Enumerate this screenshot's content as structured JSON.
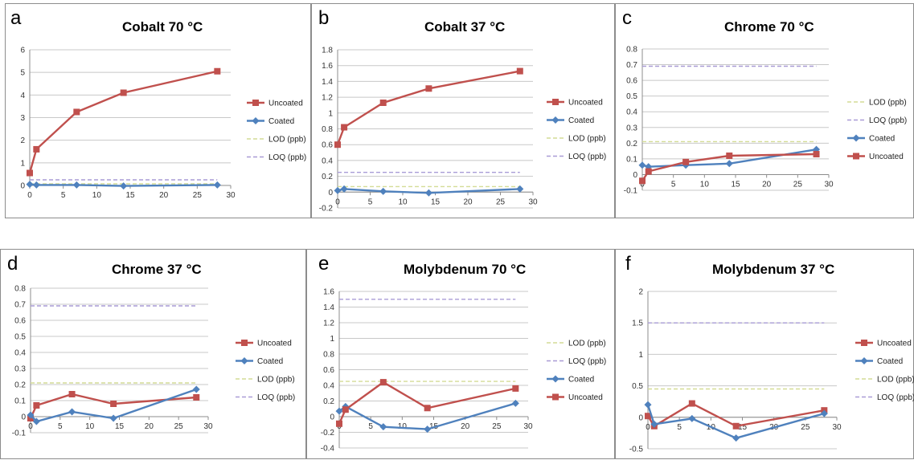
{
  "colors": {
    "uncoated": "#c0504d",
    "coated": "#4f81bd",
    "lod": "#d4dc96",
    "loq": "#a99cd6",
    "grid": "#c8c8c8",
    "axis": "#8c8c8c"
  },
  "chart_data": [
    {
      "letter": "a",
      "title": "Cobalt 70 °C",
      "type": "line",
      "xlim": [
        0,
        30
      ],
      "xticks": [
        0,
        5,
        10,
        15,
        20,
        25,
        30
      ],
      "ylim": [
        0,
        6
      ],
      "yticks": [
        0,
        1,
        2,
        3,
        4,
        5,
        6
      ],
      "series": [
        {
          "name": "Uncoated",
          "kind": "uncoated",
          "x": [
            0,
            1,
            7,
            14,
            28
          ],
          "y": [
            0.55,
            1.6,
            3.25,
            4.1,
            5.05
          ]
        },
        {
          "name": "Coated",
          "kind": "coated",
          "x": [
            0,
            1,
            7,
            14,
            28
          ],
          "y": [
            0.05,
            0.02,
            0.02,
            -0.02,
            0.02
          ]
        },
        {
          "name": "LOD (ppb)",
          "kind": "lod",
          "x": [
            0,
            28
          ],
          "y": [
            0.07,
            0.07
          ]
        },
        {
          "name": "LOQ (ppb)",
          "kind": "loq",
          "x": [
            0,
            28
          ],
          "y": [
            0.25,
            0.25
          ]
        }
      ]
    },
    {
      "letter": "b",
      "title": "Cobalt 37 °C",
      "type": "line",
      "xlim": [
        0,
        30
      ],
      "xticks": [
        0,
        5,
        10,
        15,
        20,
        25,
        30
      ],
      "ylim": [
        -0.2,
        1.8
      ],
      "yticks": [
        -0.2,
        0,
        0.2,
        0.4,
        0.6,
        0.8,
        1,
        1.2,
        1.4,
        1.6,
        1.8
      ],
      "series": [
        {
          "name": "Uncoated",
          "kind": "uncoated",
          "x": [
            0,
            1,
            7,
            14,
            28
          ],
          "y": [
            0.6,
            0.82,
            1.13,
            1.31,
            1.53
          ]
        },
        {
          "name": "Coated",
          "kind": "coated",
          "x": [
            0,
            1,
            7,
            14,
            28
          ],
          "y": [
            0.02,
            0.04,
            0.01,
            -0.01,
            0.04
          ]
        },
        {
          "name": "LOD (ppb)",
          "kind": "lod",
          "x": [
            0,
            28
          ],
          "y": [
            0.07,
            0.07
          ]
        },
        {
          "name": "LOQ (ppb)",
          "kind": "loq",
          "x": [
            0,
            28
          ],
          "y": [
            0.25,
            0.25
          ]
        }
      ]
    },
    {
      "letter": "c",
      "title": "Chrome 70 °C",
      "type": "line",
      "xlim": [
        0,
        30
      ],
      "xticks": [
        0,
        5,
        10,
        15,
        20,
        25,
        30
      ],
      "ylim": [
        -0.1,
        0.8
      ],
      "yticks": [
        -0.1,
        0,
        0.1,
        0.2,
        0.3,
        0.4,
        0.5,
        0.6,
        0.7,
        0.8
      ],
      "series": [
        {
          "name": "LOD (ppb)",
          "kind": "lod",
          "x": [
            0,
            28
          ],
          "y": [
            0.21,
            0.21
          ]
        },
        {
          "name": "LOQ (ppb)",
          "kind": "loq",
          "x": [
            0,
            28
          ],
          "y": [
            0.69,
            0.69
          ]
        },
        {
          "name": "Coated",
          "kind": "coated",
          "x": [
            0,
            1,
            7,
            14,
            28
          ],
          "y": [
            0.06,
            0.05,
            0.06,
            0.07,
            0.16
          ]
        },
        {
          "name": "Uncoated",
          "kind": "uncoated",
          "x": [
            0,
            1,
            7,
            14,
            28
          ],
          "y": [
            -0.04,
            0.02,
            0.08,
            0.12,
            0.13
          ]
        }
      ]
    },
    {
      "letter": "d",
      "title": "Chrome 37 °C",
      "type": "line",
      "xlim": [
        0,
        30
      ],
      "xticks": [
        0,
        5,
        10,
        15,
        20,
        25,
        30
      ],
      "ylim": [
        -0.1,
        0.8
      ],
      "yticks": [
        -0.1,
        0,
        0.1,
        0.2,
        0.3,
        0.4,
        0.5,
        0.6,
        0.7,
        0.8
      ],
      "series": [
        {
          "name": "Uncoated",
          "kind": "uncoated",
          "x": [
            0,
            1,
            7,
            14,
            28
          ],
          "y": [
            -0.01,
            0.07,
            0.14,
            0.08,
            0.12
          ]
        },
        {
          "name": "Coated",
          "kind": "coated",
          "x": [
            0,
            1,
            7,
            14,
            28
          ],
          "y": [
            0.01,
            -0.03,
            0.03,
            -0.01,
            0.17
          ]
        },
        {
          "name": "LOD (ppb)",
          "kind": "lod",
          "x": [
            0,
            28
          ],
          "y": [
            0.21,
            0.21
          ]
        },
        {
          "name": "LOQ (ppb)",
          "kind": "loq",
          "x": [
            0,
            28
          ],
          "y": [
            0.69,
            0.69
          ]
        }
      ]
    },
    {
      "letter": "e",
      "title": "Molybdenum 70 °C",
      "type": "line",
      "xlim": [
        0,
        30
      ],
      "xticks": [
        0,
        5,
        10,
        15,
        20,
        25,
        30
      ],
      "ylim": [
        -0.4,
        1.6
      ],
      "yticks": [
        -0.4,
        -0.2,
        0,
        0.2,
        0.4,
        0.6,
        0.8,
        1,
        1.2,
        1.4,
        1.6
      ],
      "series": [
        {
          "name": "LOD (ppb)",
          "kind": "lod",
          "x": [
            0,
            28
          ],
          "y": [
            0.45,
            0.45
          ]
        },
        {
          "name": "LOQ (ppb)",
          "kind": "loq",
          "x": [
            0,
            28
          ],
          "y": [
            1.5,
            1.5
          ]
        },
        {
          "name": "Coated",
          "kind": "coated",
          "x": [
            0,
            1,
            7,
            14,
            28
          ],
          "y": [
            0.07,
            0.13,
            -0.13,
            -0.16,
            0.17
          ]
        },
        {
          "name": "Uncoated",
          "kind": "uncoated",
          "x": [
            0,
            1,
            7,
            14,
            28
          ],
          "y": [
            -0.09,
            0.09,
            0.44,
            0.11,
            0.36
          ]
        }
      ]
    },
    {
      "letter": "f",
      "title": "Molybdenum 37 °C",
      "type": "line",
      "xlim": [
        0,
        30
      ],
      "xticks": [
        0,
        5,
        10,
        15,
        20,
        25,
        30
      ],
      "ylim": [
        -0.5,
        2
      ],
      "yticks": [
        -0.5,
        0,
        0.5,
        1,
        1.5,
        2
      ],
      "series": [
        {
          "name": "Uncoated",
          "kind": "uncoated",
          "x": [
            0,
            1,
            7,
            14,
            28
          ],
          "y": [
            0.02,
            -0.14,
            0.22,
            -0.14,
            0.11
          ]
        },
        {
          "name": "Coated",
          "kind": "coated",
          "x": [
            0,
            1,
            7,
            14,
            28
          ],
          "y": [
            0.2,
            -0.11,
            -0.02,
            -0.33,
            0.06
          ]
        },
        {
          "name": "LOD (ppb)",
          "kind": "lod",
          "x": [
            0,
            28
          ],
          "y": [
            0.45,
            0.45
          ]
        },
        {
          "name": "LOQ (ppb)",
          "kind": "loq",
          "x": [
            0,
            28
          ],
          "y": [
            1.5,
            1.5
          ]
        }
      ]
    }
  ]
}
